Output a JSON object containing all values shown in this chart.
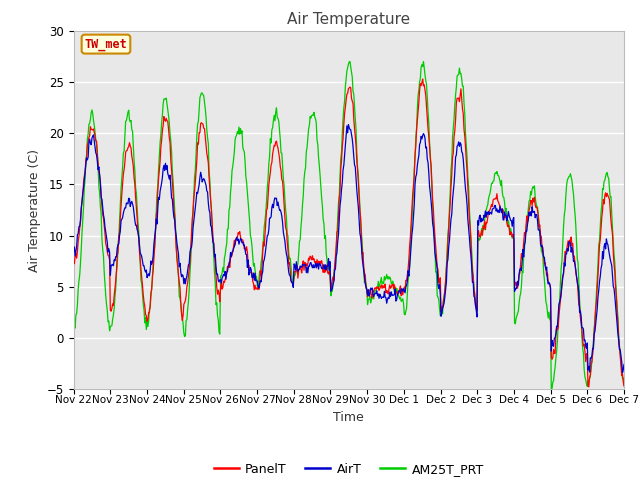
{
  "title": "Air Temperature",
  "ylabel": "Air Temperature (C)",
  "xlabel": "Time",
  "ylim": [
    -5,
    30
  ],
  "yticks": [
    -5,
    0,
    5,
    10,
    15,
    20,
    25,
    30
  ],
  "annotation_text": "TW_met",
  "annotation_color": "#cc0000",
  "annotation_bg": "#ffffdd",
  "annotation_border": "#cc8800",
  "bg_color": "#e8e8e8",
  "line_panel": "#ff0000",
  "line_air": "#0000cc",
  "line_am25": "#00cc00",
  "legend_labels": [
    "PanelT",
    "AirT",
    "AM25T_PRT"
  ],
  "xtick_labels": [
    "Nov 22",
    "Nov 23",
    "Nov 24",
    "Nov 25",
    "Nov 26",
    "Nov 27",
    "Nov 28",
    "Nov 29",
    "Nov 30",
    "Dec 1",
    "Dec 2",
    "Dec 3",
    "Dec 4",
    "Dec 5",
    "Dec 6",
    "Dec 7"
  ],
  "n_days": 15,
  "pts_per_day": 48,
  "daily_highs_panel": [
    20.5,
    19.0,
    21.5,
    21.0,
    10.0,
    19.0,
    7.5,
    24.5,
    5.0,
    25.0,
    24.0,
    13.5,
    13.5,
    9.5,
    14.5
  ],
  "daily_lows_panel": [
    7.5,
    2.5,
    2.0,
    3.5,
    5.0,
    5.0,
    6.5,
    5.0,
    4.5,
    5.0,
    2.5,
    10.0,
    5.0,
    -2.0,
    -4.5
  ],
  "daily_highs_air": [
    19.5,
    13.5,
    16.5,
    16.0,
    9.5,
    13.5,
    7.0,
    20.5,
    4.0,
    20.0,
    19.0,
    12.5,
    12.5,
    9.0,
    9.0
  ],
  "daily_lows_air": [
    8.5,
    6.5,
    6.0,
    5.5,
    5.5,
    5.0,
    7.0,
    4.5,
    4.5,
    4.5,
    2.5,
    11.5,
    5.0,
    -1.0,
    -3.0
  ],
  "daily_highs_am25": [
    22.0,
    22.0,
    23.5,
    24.0,
    20.5,
    22.0,
    22.0,
    27.0,
    6.0,
    27.0,
    26.5,
    16.0,
    14.5,
    16.0,
    16.0
  ],
  "daily_lows_am25": [
    1.0,
    1.0,
    1.5,
    0.5,
    6.0,
    5.5,
    6.0,
    4.5,
    3.5,
    2.5,
    2.5,
    9.5,
    1.5,
    -5.0,
    -4.5
  ]
}
